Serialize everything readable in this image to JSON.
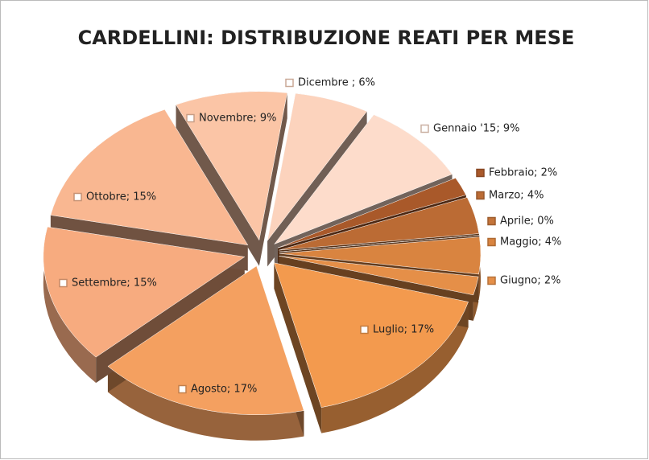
{
  "chart_data": {
    "type": "pie",
    "title": "CARDELLINI: DISTRIBUZIONE REATI PER MESE",
    "values": [
      6,
      9,
      2,
      4,
      0,
      4,
      2,
      17,
      17,
      15,
      15,
      9
    ],
    "value_labels": [
      "Dicembre ; 6%",
      "Gennaio '15; 9%",
      "Febbraio; 2%",
      "Marzo; 4%",
      "Aprile; 0%",
      "Maggio; 4%",
      "Giugno; 2%",
      "Luglio; 17%",
      "Agosto; 17%",
      "Settembre; 15%",
      "Ottobre; 15%",
      "Novembre; 9%"
    ],
    "colors": [
      "#fcd3bd",
      "#fddccb",
      "#a9592a",
      "#bb6b34",
      "#c4743a",
      "#d98440",
      "#e58f48",
      "#f39a4e",
      "#f4a060",
      "#f7ab7f",
      "#f9b791",
      "#fbc5a6"
    ]
  }
}
